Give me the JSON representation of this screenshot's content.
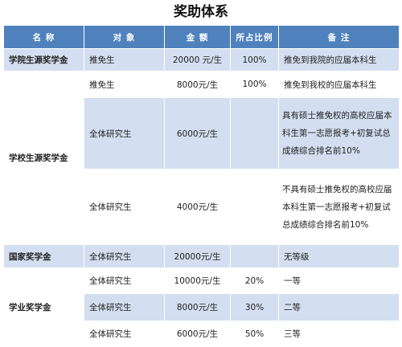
{
  "title": "奖助体系",
  "headers": [
    "名 称",
    "对 象",
    "金 额",
    "所占比例",
    "备 注"
  ],
  "rows": {
    "r1": {
      "name": "学院生源奖学金",
      "target": "推免生",
      "amount": "20000 元/生",
      "ratio": "100%",
      "note": "推免到我院的应届本科生"
    },
    "r2": {
      "name": "学校生源奖学金",
      "target": "推免生",
      "amount": "8000元/生",
      "ratio": "100%",
      "note": "推免到我校的应届本科生"
    },
    "r3": {
      "target": "全体研究生",
      "amount": "6000元/生",
      "ratio": "",
      "note": "具有硕士推免权的高校应届本科生第一志愿报考+初复试总成绩综合排名前10%"
    },
    "r4": {
      "target": "全体研究生",
      "amount": "4000元/生",
      "ratio": "",
      "note": "不具有硕士推免权的高校应届本科生第一志愿报考+初复试总成绩综合排名前10%"
    },
    "r5": {
      "name": "国家奖学金",
      "target": "全体研究生",
      "amount": "20000元/生",
      "ratio": "",
      "note": "无等级"
    },
    "r6": {
      "name": "学业奖学金",
      "target": "全体研究生",
      "amount": "10000元/生",
      "ratio": "20%",
      "note": "一等"
    },
    "r7": {
      "target": "全体研究生",
      "amount": "8000元/生",
      "ratio": "30%",
      "note": "二等"
    },
    "r8": {
      "target": "全体研究生",
      "amount": "6000元/生",
      "ratio": "50%",
      "note": "三等"
    }
  },
  "colors": {
    "header": "#4f81bd",
    "band": "#d3dff0",
    "white": "#ffffff"
  }
}
